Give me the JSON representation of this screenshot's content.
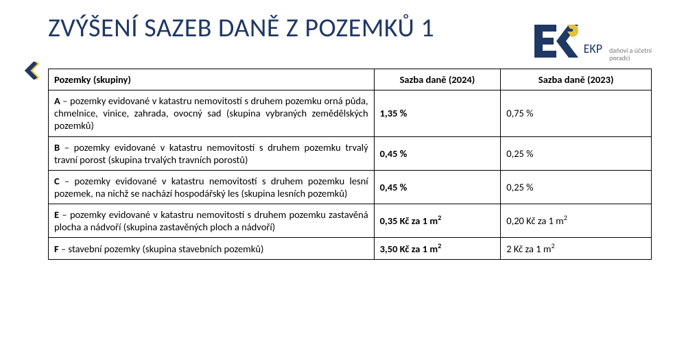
{
  "title": "ZVÝŠENÍ SAZEB DANĚ Z POZEMKŮ 1",
  "logo": {
    "name": "EKP",
    "tagline_line1": "daňoví a účetní",
    "tagline_line2": "poradci",
    "primary_color": "#1f3864",
    "accent_color": "#e6c139"
  },
  "chevron": {
    "primary_color": "#1f3864",
    "shadow_color": "#e6c139"
  },
  "table": {
    "columns": [
      {
        "key": "category",
        "label": "Pozemky (skupiny)",
        "width_pct": 54,
        "align": "left"
      },
      {
        "key": "rate_2024",
        "label": "Sazba daně (2024)",
        "width_pct": 21,
        "align": "center"
      },
      {
        "key": "rate_2023",
        "label": "Sazba daně (2023)",
        "width_pct": 25,
        "align": "center"
      }
    ],
    "rows": [
      {
        "letter": "A",
        "desc": " – pozemky evidované v katastru nemovitostí s druhem pozemku orná půda, chmelnice, vinice, zahrada, ovocný sad (skupina vybraných zemědělských pozemků)",
        "rate_2024": "1,35 %",
        "rate_2023": "0,75 %"
      },
      {
        "letter": "B",
        "desc": " – pozemky evidované v katastru nemovitostí s druhem pozemku trvalý travní porost (skupina trvalých travních porostů)",
        "rate_2024": "0,45 %",
        "rate_2023": "0,25 %"
      },
      {
        "letter": "C",
        "desc": " – pozemky evidované v katastru nemovitostí s druhem pozemku lesní pozemek, na nichž se nachází hospodářský les (skupina lesních pozemků)",
        "rate_2024": "0,45 %",
        "rate_2023": "0,25 %"
      },
      {
        "letter": "E",
        "desc": " – pozemky evidované v katastru nemovitostí s druhem pozemku zastavěná plocha a nádvoří (skupina zastavěných ploch a nádvoří)",
        "rate_2024": "0,35 Kč za 1 m²",
        "rate_2023": "0,20 Kč za 1 m²"
      },
      {
        "letter": "F",
        "desc": " – stavební pozemky (skupina stavebních pozemků)",
        "rate_2024": "3,50 Kč za 1 m²",
        "rate_2023": "2 Kč za 1 m²"
      }
    ]
  },
  "styling": {
    "title_color": "#1f3864",
    "title_fontsize": 38,
    "body_fontsize": 14.5,
    "border_color": "#000000",
    "background_color": "#ffffff"
  }
}
